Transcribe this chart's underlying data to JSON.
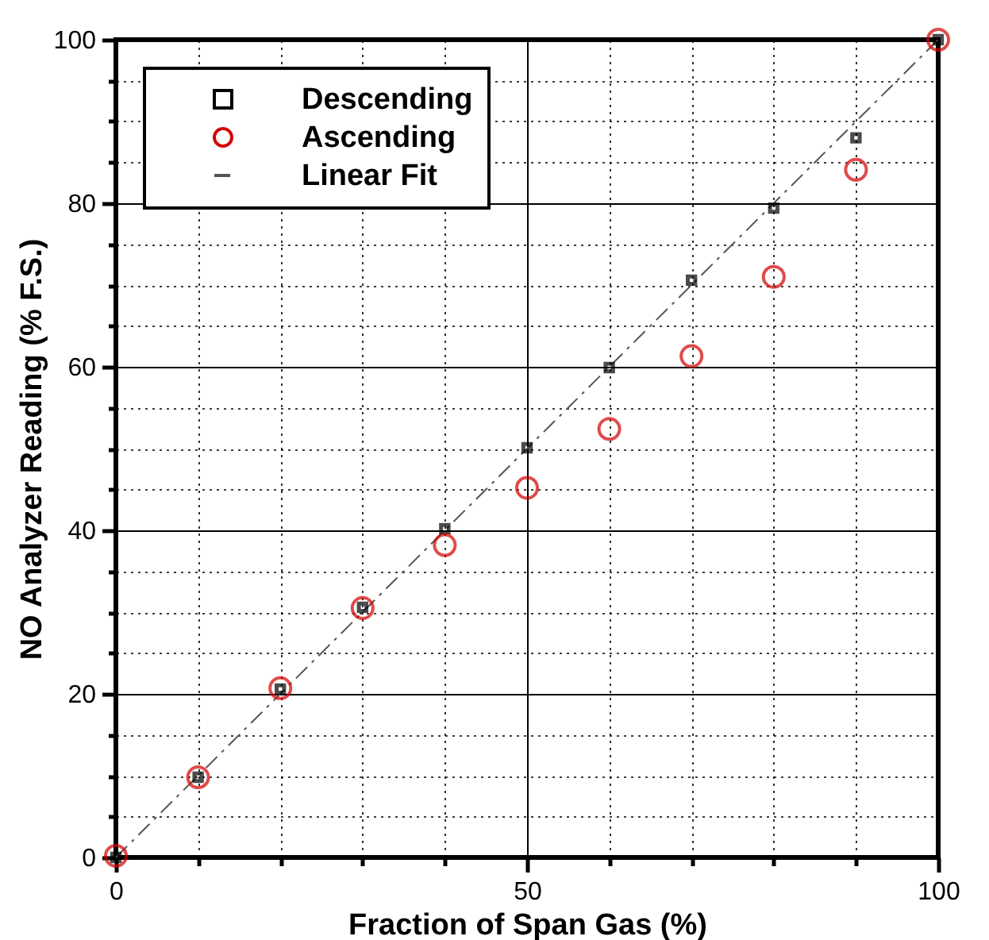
{
  "chart_data": {
    "type": "scatter",
    "xlabel": "Fraction of Span Gas (%)",
    "ylabel": "NO Analyzer Reading (% F.S.)",
    "x": [
      0,
      10,
      20,
      30,
      40,
      50,
      60,
      70,
      80,
      90,
      100
    ],
    "series": [
      {
        "name": "Descending",
        "color": "#000000",
        "marker": "square",
        "values": [
          0,
          9.8,
          20.6,
          30.6,
          40.2,
          50.1,
          59.9,
          70.6,
          79.4,
          88,
          100
        ]
      },
      {
        "name": "Ascending",
        "color": "#d40000",
        "marker": "circle",
        "values": [
          0.2,
          9.8,
          20.7,
          30.5,
          38.2,
          45.2,
          52.4,
          61.3,
          71,
          84.1,
          100
        ]
      },
      {
        "name": "Linear Fit",
        "type": "line",
        "color": "#555555",
        "line_style": "dashed",
        "marker": "none",
        "x": [
          0,
          100
        ],
        "values": [
          0,
          100
        ]
      }
    ],
    "xlim": [
      0,
      100
    ],
    "ylim": [
      0,
      100
    ],
    "xticks": [
      0,
      {
        "value": 10,
        "label": null
      },
      {
        "value": 20,
        "label": null
      },
      {
        "value": 30,
        "label": null
      },
      {
        "value": 40,
        "label": null
      },
      50,
      {
        "value": 60,
        "label": null
      },
      {
        "value": 70,
        "label": null
      },
      {
        "value": 80,
        "label": null
      },
      {
        "value": 90,
        "label": null
      },
      100
    ],
    "yticks": [
      0,
      {
        "value": 5,
        "label": null
      },
      {
        "value": 10,
        "label": null
      },
      {
        "value": 15,
        "label": null
      },
      20,
      {
        "value": 25,
        "label": null
      },
      {
        "value": 30,
        "label": null
      },
      {
        "value": 35,
        "label": null
      },
      40,
      {
        "value": 45,
        "label": null
      },
      {
        "value": 50,
        "label": null
      },
      {
        "value": 55,
        "label": null
      },
      60,
      {
        "value": 65,
        "label": null
      },
      {
        "value": 70,
        "label": null
      },
      {
        "value": 75,
        "label": null
      },
      80,
      {
        "value": 85,
        "label": null
      },
      {
        "value": 90,
        "label": null
      },
      {
        "value": 95,
        "label": null
      },
      100
    ],
    "grid": true,
    "legend": "top left"
  }
}
